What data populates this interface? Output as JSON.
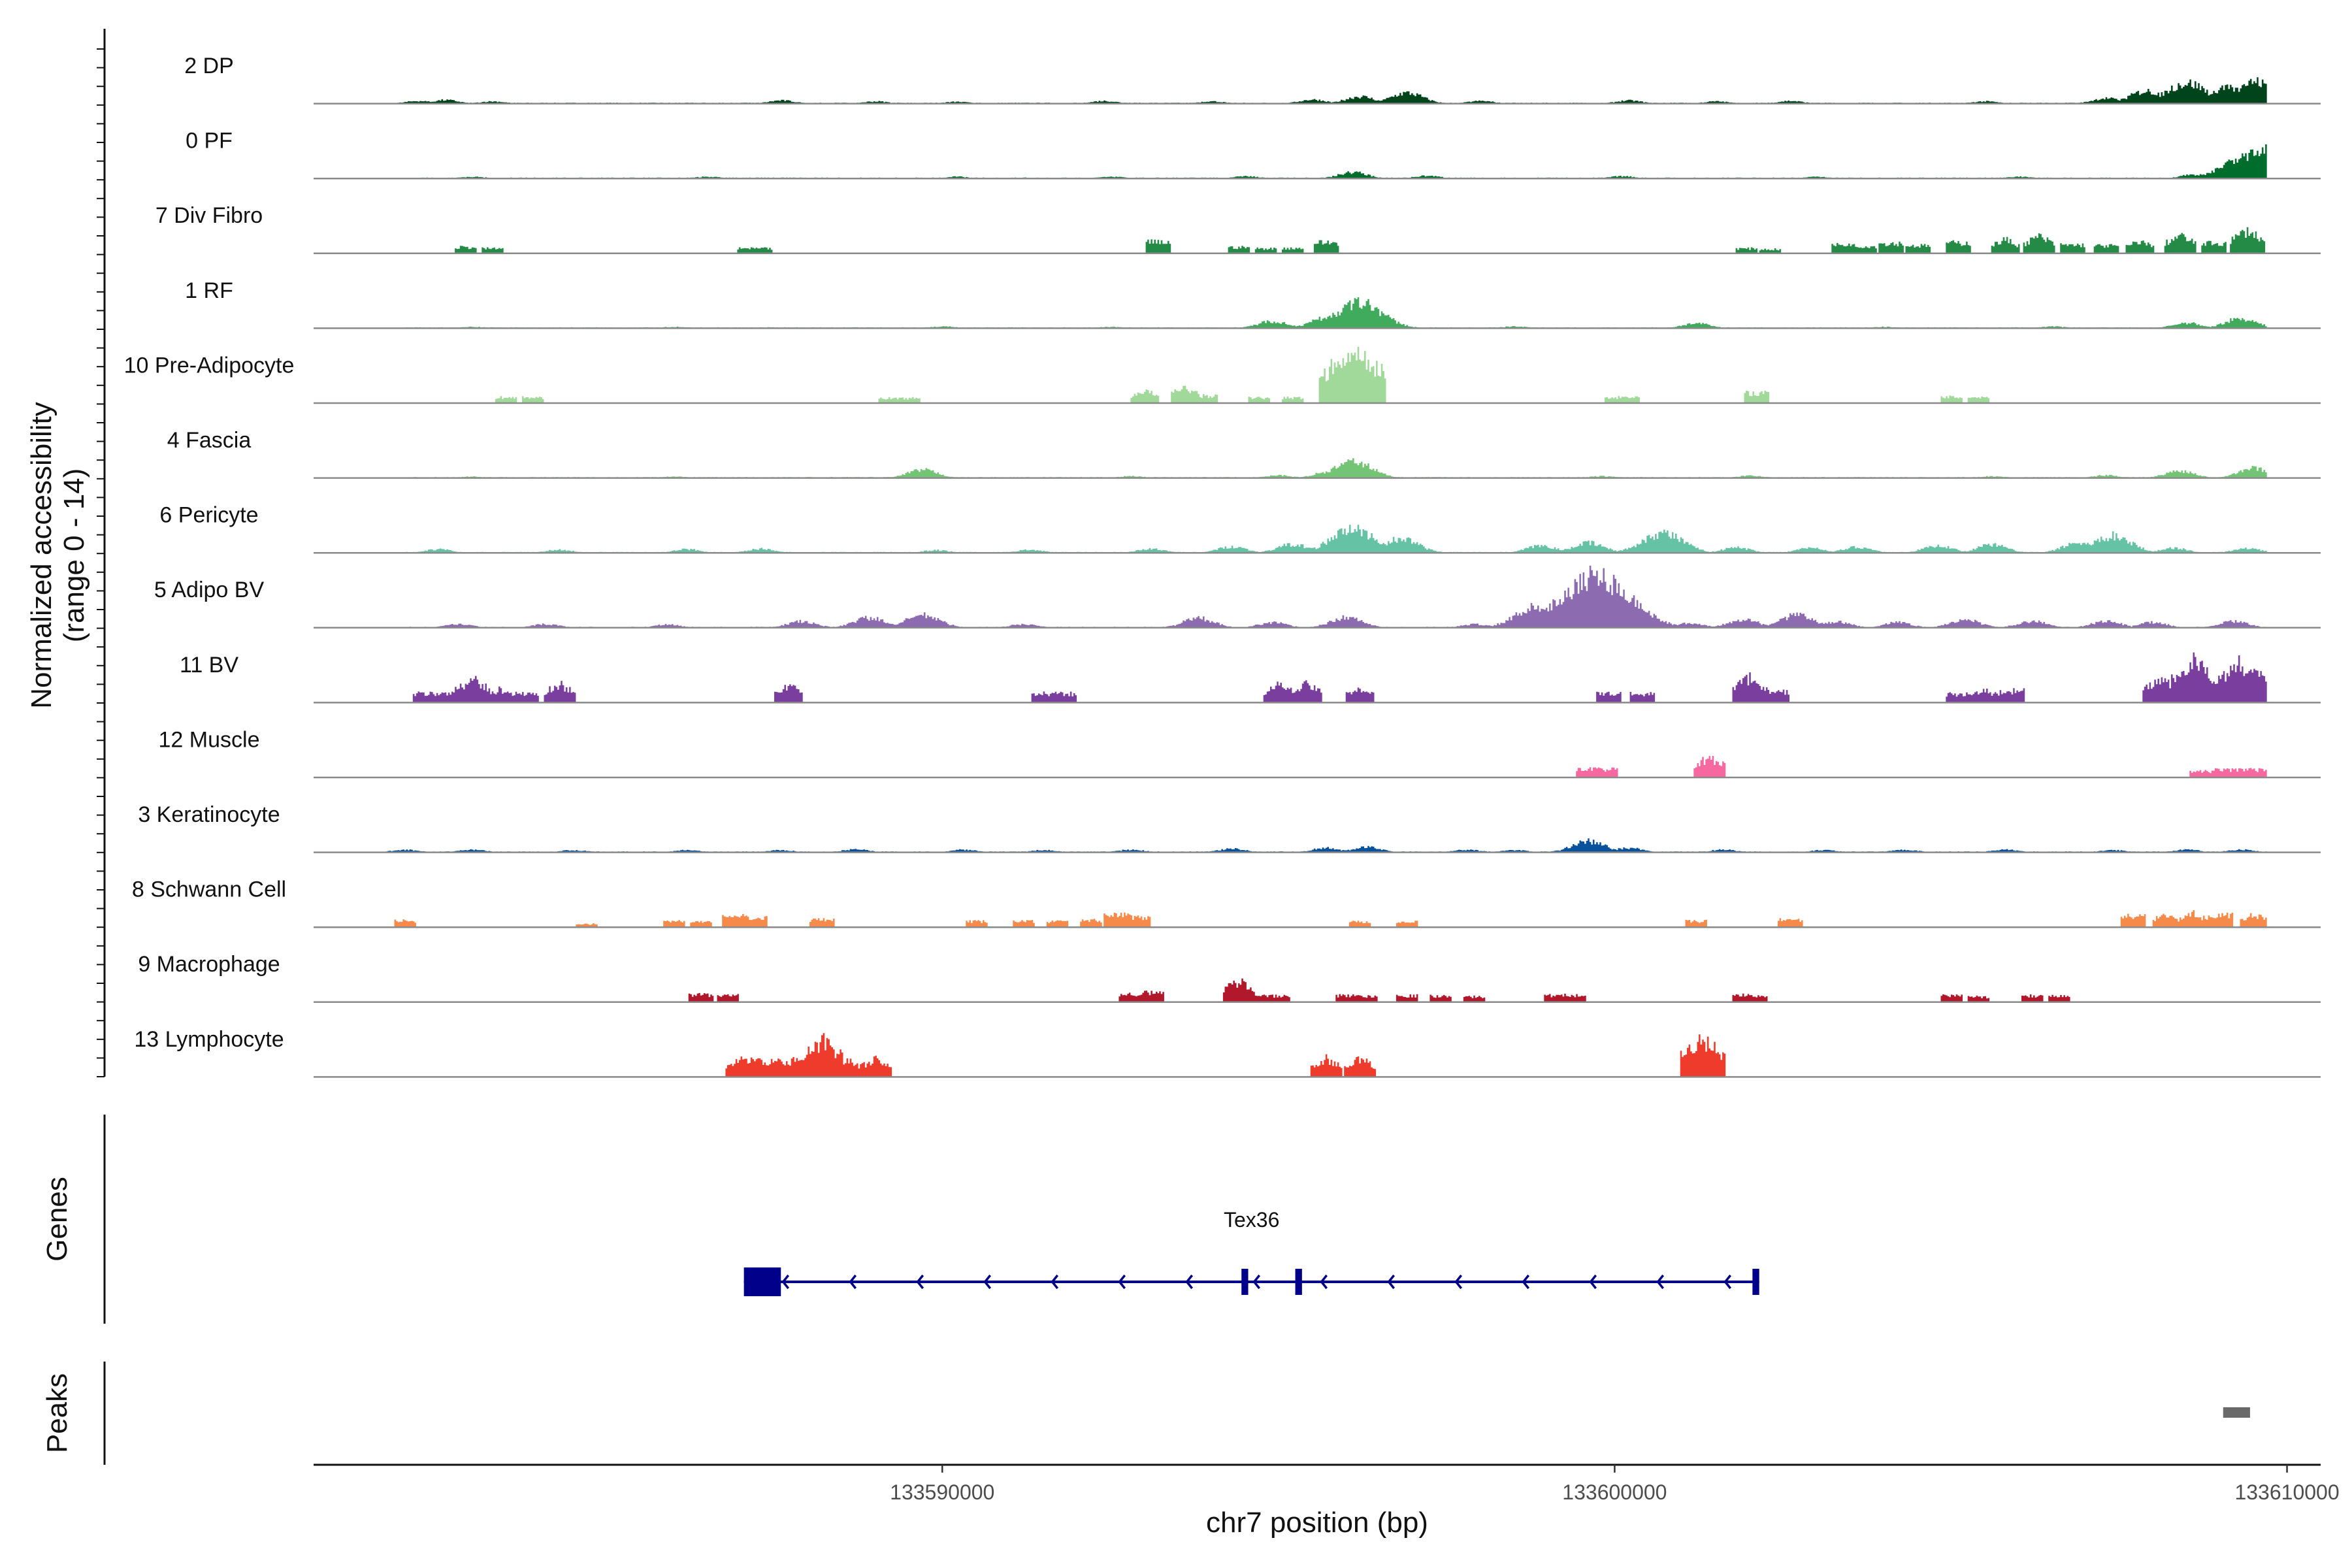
{
  "chart_data": {
    "type": "area",
    "ylabel_line1": "Normalized accessibility",
    "ylabel_line2": "(range 0 - 14)",
    "xlabel": "chr7 position (bp)",
    "x_range": [
      133580650,
      133610500
    ],
    "y_range": [
      0,
      14
    ],
    "x_ticks": [
      {
        "value": 133590000,
        "label": "133590000"
      },
      {
        "value": 133600000,
        "label": "133600000"
      },
      {
        "value": 133610000,
        "label": "133610000"
      }
    ],
    "tracks": [
      {
        "name": "2 DP",
        "color": "#00441b",
        "type": "continuous",
        "peaks": [
          [
            133582200,
            0.6
          ],
          [
            133582600,
            0.8
          ],
          [
            133583300,
            0.5
          ],
          [
            133587600,
            0.7
          ],
          [
            133589000,
            0.5
          ],
          [
            133590200,
            0.4
          ],
          [
            133592400,
            0.6
          ],
          [
            133594000,
            0.5
          ],
          [
            133595500,
            0.9
          ],
          [
            133596200,
            1.6
          ],
          [
            133596900,
            2.4
          ],
          [
            133598000,
            0.6
          ],
          [
            133600200,
            0.7
          ],
          [
            133601500,
            0.5
          ],
          [
            133602600,
            0.6
          ],
          [
            133605500,
            0.5
          ],
          [
            133607300,
            1.2
          ],
          [
            133607900,
            2.8
          ],
          [
            133608500,
            4.6
          ],
          [
            133609100,
            3.4
          ],
          [
            133609500,
            4.9
          ]
        ]
      },
      {
        "name": "0 PF",
        "color": "#006d2c",
        "type": "continuous",
        "peaks": [
          [
            133583000,
            0.4
          ],
          [
            133586500,
            0.4
          ],
          [
            133590200,
            0.4
          ],
          [
            133592500,
            0.4
          ],
          [
            133594500,
            0.5
          ],
          [
            133596100,
            1.4
          ],
          [
            133597200,
            0.6
          ],
          [
            133600100,
            0.5
          ],
          [
            133603000,
            0.4
          ],
          [
            133606000,
            0.4
          ],
          [
            133608600,
            0.9
          ],
          [
            133609400,
            5.5
          ],
          [
            133609650,
            6.2
          ]
        ]
      },
      {
        "name": "7 Div Fibro",
        "color": "#238b45",
        "type": "sparse",
        "peaks": [
          [
            133582900,
            1.5
          ],
          [
            133583300,
            1.2
          ],
          [
            133587100,
            1.2
          ],
          [
            133587300,
            1.2
          ],
          [
            133593200,
            2.8
          ],
          [
            133594400,
            1.5
          ],
          [
            133594800,
            1.2
          ],
          [
            133595200,
            1.3
          ],
          [
            133595700,
            2.7
          ],
          [
            133601950,
            1.2
          ],
          [
            133602300,
            1.0
          ],
          [
            133603400,
            2.1
          ],
          [
            133603700,
            1.8
          ],
          [
            133604100,
            2.5
          ],
          [
            133604500,
            1.9
          ],
          [
            133605100,
            2.6
          ],
          [
            133605800,
            3.5
          ],
          [
            133606300,
            4.3
          ],
          [
            133606800,
            2.1
          ],
          [
            133607300,
            1.9
          ],
          [
            133607800,
            3.1
          ],
          [
            133608400,
            4.5
          ],
          [
            133608900,
            2.5
          ],
          [
            133609400,
            5.8
          ]
        ]
      },
      {
        "name": "1 RF",
        "color": "#41ab5d",
        "type": "continuous",
        "peaks": [
          [
            133583000,
            0.3
          ],
          [
            133586000,
            0.3
          ],
          [
            133590000,
            0.4
          ],
          [
            133592500,
            0.3
          ],
          [
            133594900,
            1.6
          ],
          [
            133595700,
            2.3
          ],
          [
            133596200,
            5.7
          ],
          [
            133598500,
            0.4
          ],
          [
            133601200,
            1.1
          ],
          [
            133604000,
            0.3
          ],
          [
            133606500,
            0.4
          ],
          [
            133608500,
            1.2
          ],
          [
            133609300,
            2.2
          ]
        ]
      },
      {
        "name": "10 Pre-Adipocyte",
        "color": "#a1d99b",
        "type": "sparse",
        "peaks": [
          [
            133583500,
            1.4
          ],
          [
            133583900,
            1.4
          ],
          [
            133589200,
            1.2
          ],
          [
            133589500,
            1.2
          ],
          [
            133593000,
            3.2
          ],
          [
            133593600,
            4.0
          ],
          [
            133593900,
            1.8
          ],
          [
            133594700,
            1.3
          ],
          [
            133595200,
            1.3
          ],
          [
            133595950,
            11.2
          ],
          [
            133596200,
            12.6
          ],
          [
            133600000,
            1.4
          ],
          [
            133600200,
            1.4
          ],
          [
            133602100,
            2.5
          ],
          [
            133605000,
            1.5
          ],
          [
            133605400,
            1.5
          ]
        ]
      },
      {
        "name": "4 Fascia",
        "color": "#74c476",
        "type": "continuous",
        "peaks": [
          [
            133583000,
            0.3
          ],
          [
            133586000,
            0.3
          ],
          [
            133589700,
            1.8
          ],
          [
            133592800,
            0.4
          ],
          [
            133595000,
            0.6
          ],
          [
            133595700,
            1.2
          ],
          [
            133596100,
            3.7
          ],
          [
            133599800,
            0.4
          ],
          [
            133602000,
            0.5
          ],
          [
            133605600,
            0.4
          ],
          [
            133607300,
            0.6
          ],
          [
            133608400,
            1.6
          ],
          [
            133609500,
            2.2
          ]
        ]
      },
      {
        "name": "6 Pericyte",
        "color": "#66c2a4",
        "type": "continuous",
        "peaks": [
          [
            133582500,
            0.8
          ],
          [
            133584300,
            0.7
          ],
          [
            133586200,
            0.8
          ],
          [
            133587300,
            0.9
          ],
          [
            133589900,
            0.6
          ],
          [
            133591300,
            0.7
          ],
          [
            133593100,
            0.9
          ],
          [
            133594300,
            1.4
          ],
          [
            133595200,
            1.9
          ],
          [
            133596100,
            5.3
          ],
          [
            133596800,
            3.2
          ],
          [
            133598900,
            1.6
          ],
          [
            133599600,
            2.2
          ],
          [
            133600700,
            4.5
          ],
          [
            133601800,
            1.2
          ],
          [
            133602900,
            1.1
          ],
          [
            133603600,
            1.3
          ],
          [
            133604800,
            1.6
          ],
          [
            133605600,
            1.8
          ],
          [
            133606900,
            2.3
          ],
          [
            133607400,
            3.8
          ],
          [
            133608300,
            1.1
          ],
          [
            133609400,
            1.0
          ]
        ]
      },
      {
        "name": "5 Adipo BV",
        "color": "#8c6bb1",
        "type": "continuous",
        "peaks": [
          [
            133582800,
            0.8
          ],
          [
            133584100,
            0.8
          ],
          [
            133585900,
            0.7
          ],
          [
            133587900,
            1.4
          ],
          [
            133588900,
            2.2
          ],
          [
            133589700,
            2.8
          ],
          [
            133591200,
            0.8
          ],
          [
            133593800,
            2.1
          ],
          [
            133594900,
            1.2
          ],
          [
            133596000,
            2.3
          ],
          [
            133597900,
            0.8
          ],
          [
            133598800,
            4.5
          ],
          [
            133599700,
            11.6
          ],
          [
            133600300,
            4.0
          ],
          [
            133601100,
            1.1
          ],
          [
            133601900,
            1.9
          ],
          [
            133602700,
            2.8
          ],
          [
            133603300,
            1.3
          ],
          [
            133604200,
            1.2
          ],
          [
            133605200,
            1.8
          ],
          [
            133606200,
            1.5
          ],
          [
            133607300,
            1.5
          ],
          [
            133608000,
            1.2
          ],
          [
            133609200,
            1.4
          ]
        ]
      },
      {
        "name": "11 BV",
        "color": "#7a3f9e",
        "type": "sparse",
        "peaks": [
          [
            133582300,
            2.2
          ],
          [
            133582600,
            2.2
          ],
          [
            133583000,
            6.0
          ],
          [
            133583400,
            3.2
          ],
          [
            133583800,
            2.2
          ],
          [
            133584300,
            4.6
          ],
          [
            133587700,
            4.2
          ],
          [
            133591500,
            2.2
          ],
          [
            133591800,
            2.2
          ],
          [
            133595000,
            4.6
          ],
          [
            133595400,
            4.6
          ],
          [
            133596200,
            3.8
          ],
          [
            133599900,
            2.2
          ],
          [
            133600400,
            2.2
          ],
          [
            133602000,
            6.3
          ],
          [
            133602400,
            2.6
          ],
          [
            133605100,
            2.1
          ],
          [
            133605500,
            3.1
          ],
          [
            133605900,
            2.9
          ],
          [
            133608100,
            5.9
          ],
          [
            133608600,
            10.0
          ],
          [
            133609000,
            6.0
          ],
          [
            133609300,
            10.0
          ],
          [
            133609600,
            8.0
          ]
        ]
      },
      {
        "name": "12 Muscle",
        "color": "#f768a1",
        "type": "sparse",
        "peaks": [
          [
            133599600,
            2.1
          ],
          [
            133599850,
            2.0
          ],
          [
            133601400,
            5.1
          ],
          [
            133608700,
            1.5
          ],
          [
            133609050,
            1.9
          ],
          [
            133609350,
            1.9
          ],
          [
            133609550,
            1.9
          ]
        ]
      },
      {
        "name": "3 Keratinocyte",
        "color": "#08519c",
        "type": "continuous",
        "peaks": [
          [
            133582000,
            0.6
          ],
          [
            133583000,
            0.6
          ],
          [
            133584500,
            0.5
          ],
          [
            133586200,
            0.5
          ],
          [
            133587600,
            0.5
          ],
          [
            133588700,
            0.7
          ],
          [
            133590300,
            0.6
          ],
          [
            133591500,
            0.5
          ],
          [
            133592800,
            0.6
          ],
          [
            133594300,
            0.8
          ],
          [
            133595700,
            1.0
          ],
          [
            133596300,
            1.2
          ],
          [
            133597800,
            0.6
          ],
          [
            133598500,
            0.5
          ],
          [
            133599600,
            2.5
          ],
          [
            133600200,
            1.0
          ],
          [
            133601600,
            0.6
          ],
          [
            133603100,
            0.5
          ],
          [
            133604300,
            0.6
          ],
          [
            133605800,
            0.6
          ],
          [
            133607400,
            0.5
          ],
          [
            133608500,
            0.6
          ],
          [
            133609300,
            0.6
          ]
        ]
      },
      {
        "name": "8 Schwann Cell",
        "color": "#f58a4b",
        "type": "sparse",
        "peaks": [
          [
            133582000,
            1.6
          ],
          [
            133584700,
            0.8
          ],
          [
            133586000,
            1.5
          ],
          [
            133586400,
            1.3
          ],
          [
            133586900,
            2.7
          ],
          [
            133587200,
            2.5
          ],
          [
            133588200,
            1.8
          ],
          [
            133590500,
            1.4
          ],
          [
            133591200,
            1.5
          ],
          [
            133591700,
            1.4
          ],
          [
            133592200,
            1.7
          ],
          [
            133592600,
            3.0
          ],
          [
            133592900,
            2.5
          ],
          [
            133596200,
            1.4
          ],
          [
            133596900,
            1.3
          ],
          [
            133601200,
            1.5
          ],
          [
            133602600,
            1.9
          ],
          [
            133607700,
            2.8
          ],
          [
            133608200,
            3.3
          ],
          [
            133608600,
            3.4
          ],
          [
            133609000,
            2.9
          ],
          [
            133609500,
            3.2
          ]
        ]
      },
      {
        "name": "9 Macrophage",
        "color": "#b2182b",
        "type": "sparse",
        "peaks": [
          [
            133586400,
            1.8
          ],
          [
            133586800,
            1.6
          ],
          [
            133592800,
            2.0
          ],
          [
            133593100,
            2.3
          ],
          [
            133594400,
            5.4
          ],
          [
            133594700,
            1.5
          ],
          [
            133595000,
            1.5
          ],
          [
            133596000,
            1.6
          ],
          [
            133596300,
            1.5
          ],
          [
            133596900,
            1.6
          ],
          [
            133597400,
            1.5
          ],
          [
            133597900,
            1.3
          ],
          [
            133599100,
            1.7
          ],
          [
            133599400,
            1.7
          ],
          [
            133601900,
            1.7
          ],
          [
            133602100,
            1.4
          ],
          [
            133605000,
            1.7
          ],
          [
            133605400,
            1.3
          ],
          [
            133606200,
            1.6
          ],
          [
            133606600,
            1.5
          ]
        ]
      },
      {
        "name": "13 Lymphocyte",
        "color": "#ef3b2c",
        "type": "sparse",
        "peaks": [
          [
            133587000,
            4.5
          ],
          [
            133587200,
            4.5
          ],
          [
            133587500,
            4.1
          ],
          [
            133587800,
            4.2
          ],
          [
            133588200,
            9.2
          ],
          [
            133588600,
            4.0
          ],
          [
            133589000,
            4.5
          ],
          [
            133595700,
            4.5
          ],
          [
            133596200,
            4.5
          ],
          [
            133601300,
            9.5
          ]
        ]
      }
    ],
    "genes_label": "Genes",
    "gene": {
      "name": "Tex36",
      "color": "#00008b",
      "start": 133587050,
      "end": 133602150,
      "strand": "-",
      "exons": [
        [
          133587050,
          133587600
        ],
        [
          133594450,
          133594550
        ],
        [
          133595250,
          133595350
        ],
        [
          133602050,
          133602150
        ]
      ]
    },
    "peaks_label": "Peaks",
    "peak_regions": [
      {
        "start": 133609050,
        "end": 133609450,
        "color": "#696969"
      }
    ]
  }
}
